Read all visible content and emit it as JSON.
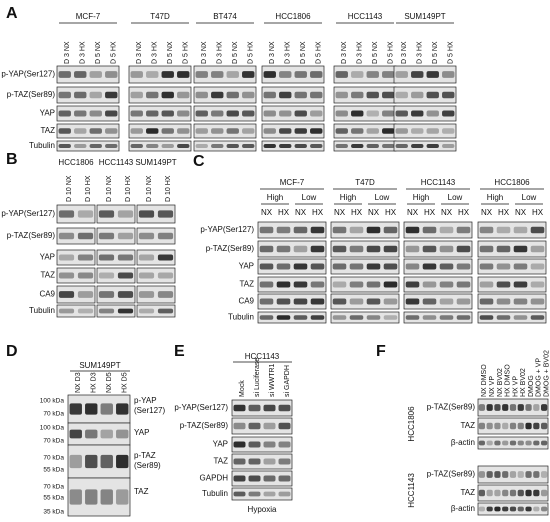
{
  "panel_a": {
    "label": "A",
    "cell_lines": [
      "MCF-7",
      "T47D",
      "BT474",
      "HCC1806",
      "HCC1143",
      "SUM149PT"
    ],
    "lanes": [
      "D 3 NX",
      "D 3 HX",
      "D 5 NX",
      "D 5 HX"
    ],
    "rows": [
      "p-YAP(Ser127)",
      "p-TAZ(Ser89)",
      "YAP",
      "TAZ",
      "Tubulin"
    ]
  },
  "panel_b": {
    "label": "B",
    "cell_lines": [
      "HCC1806",
      "HCC1143",
      "SUM149PT"
    ],
    "lanes": [
      "D 10 NX",
      "D 10 HX"
    ],
    "rows": [
      "p-YAP(Ser127)",
      "p-TAZ(Ser89)",
      "YAP",
      "TAZ",
      "CA9",
      "Tubulin"
    ]
  },
  "panel_c": {
    "label": "C",
    "cell_lines": [
      "MCF-7",
      "T47D",
      "HCC1143",
      "HCC1806"
    ],
    "groups": [
      "High",
      "Low"
    ],
    "lanes": [
      "NX",
      "HX"
    ],
    "rows": [
      "p-YAP(Ser127)",
      "p-TAZ(Ser89)",
      "YAP",
      "TAZ",
      "CA9",
      "Tubulin"
    ]
  },
  "panel_d": {
    "label": "D",
    "cell_line": "SUM149PT",
    "lanes": [
      "NX D3",
      "HX D3",
      "NX D5",
      "HX D5"
    ],
    "markers": [
      "100 kDa",
      "70 kDa",
      "100 kDa",
      "70 kDa",
      "70 kDa",
      "55 kDa",
      "70 kDa",
      "55 kDa",
      "35 kDa"
    ],
    "row_labels": [
      "p-YAP",
      "(Ser127)",
      "YAP",
      "p-TAZ",
      "(Ser89)",
      "TAZ"
    ]
  },
  "panel_e": {
    "label": "E",
    "cell_line": "HCC1143",
    "lanes": [
      "Mock",
      "si Luciferase",
      "si WWTR1",
      "si GAPDH"
    ],
    "rows": [
      "p-YAP(Ser127)",
      "p-TAZ(Ser89)",
      "YAP",
      "TAZ",
      "GAPDH",
      "Tubulin"
    ],
    "condition": "Hypoxia"
  },
  "panel_f": {
    "label": "F",
    "lanes": [
      "NX DMSO",
      "NX VP",
      "NX BV02",
      "HX DMSO",
      "HX VP",
      "HX BV02",
      "DMOG",
      "DMOG + VP",
      "DMOG + BV02"
    ],
    "cell_lines": [
      "HCC1806",
      "HCC1143"
    ],
    "rows": [
      "p-TAZ(Ser89)",
      "TAZ",
      "β-actin"
    ]
  }
}
